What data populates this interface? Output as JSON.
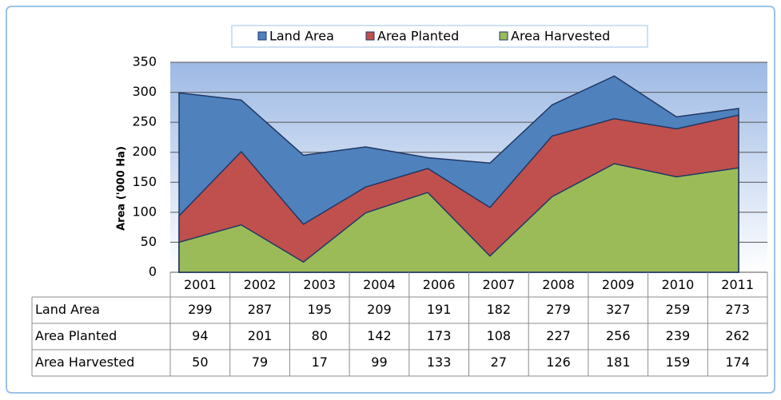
{
  "chart_data": {
    "type": "area",
    "y_label": "Area ('000 Ha)",
    "categories": [
      "2001",
      "2002",
      "2003",
      "2004",
      "2006",
      "2007",
      "2008",
      "2009",
      "2010",
      "2011"
    ],
    "series": [
      {
        "name": "Land Area",
        "color": "#4f81bd",
        "values": [
          299,
          287,
          195,
          209,
          191,
          182,
          279,
          327,
          259,
          273
        ]
      },
      {
        "name": "Area Planted",
        "color": "#c0504d",
        "values": [
          94,
          201,
          80,
          142,
          173,
          108,
          227,
          256,
          239,
          262
        ]
      },
      {
        "name": "Area Harvested",
        "color": "#9bbb59",
        "values": [
          50,
          79,
          17,
          99,
          133,
          27,
          126,
          181,
          159,
          174
        ]
      }
    ],
    "ylim": [
      0,
      350
    ],
    "yticks": [
      0,
      50,
      100,
      150,
      200,
      250,
      300,
      350
    ],
    "grid": true,
    "legend": "top"
  }
}
